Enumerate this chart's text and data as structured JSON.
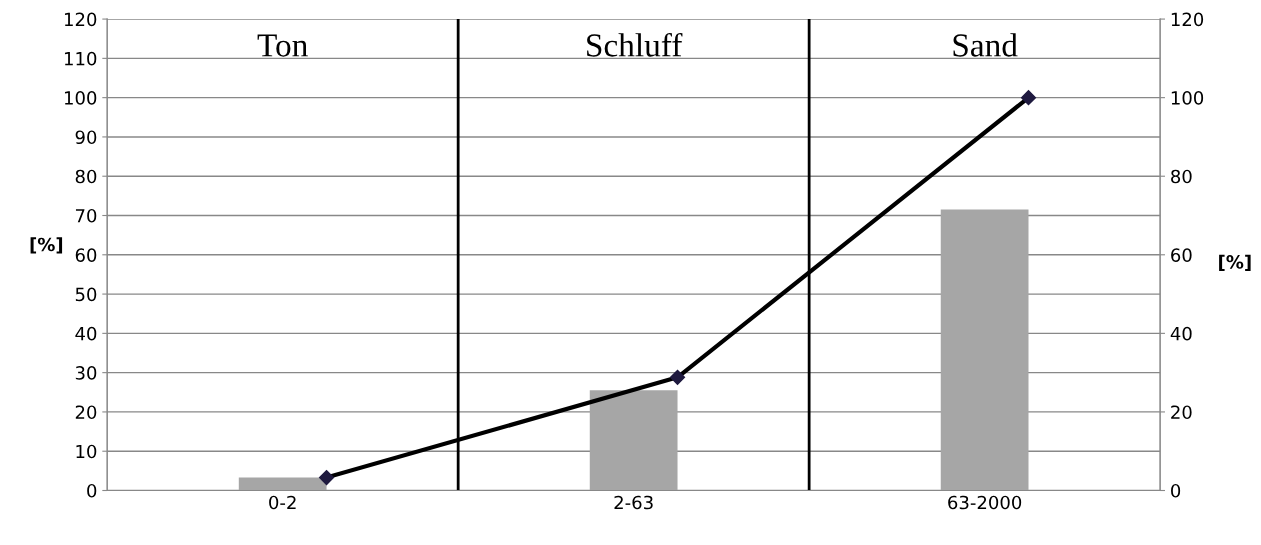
{
  "chart_data": {
    "type": "bar",
    "categories": [
      "0-2",
      "2-63",
      "63-2000"
    ],
    "series": [
      {
        "color": "#a6a6a6",
        "values": [
          3.3,
          25.5,
          71.5
        ]
      },
      {
        "type": "line",
        "axis": "y2",
        "color": "#000000",
        "values": [
          3.3,
          28.8,
          100
        ]
      }
    ],
    "ylabel": "[%]",
    "y2label": "[%]",
    "ylim": [
      0,
      120
    ],
    "yticks": [
      0,
      10,
      20,
      30,
      40,
      50,
      60,
      70,
      80,
      90,
      100,
      110,
      120
    ],
    "y2lim": [
      0,
      120
    ],
    "y2ticks": [
      0,
      20,
      40,
      60,
      80,
      100,
      120
    ],
    "annotations": [
      "Ton",
      "Schluff",
      "Sand"
    ],
    "grid": "y",
    "marker": "diamond",
    "line_style": "solid"
  }
}
